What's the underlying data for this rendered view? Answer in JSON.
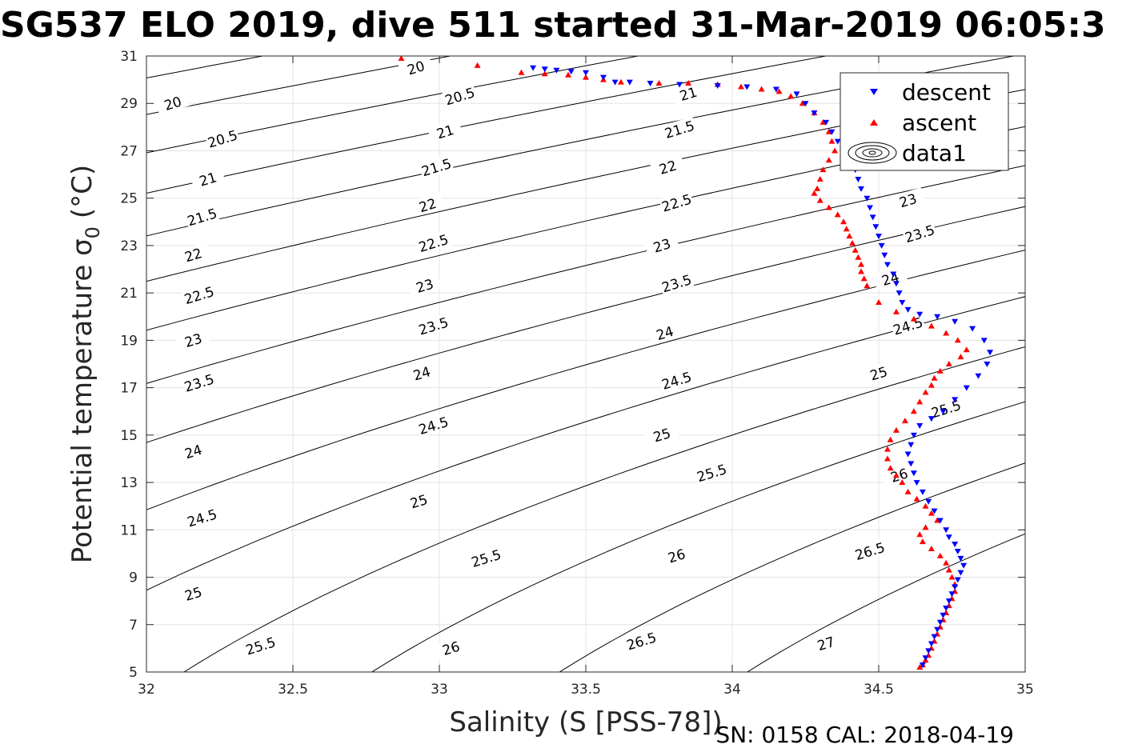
{
  "chart_data": {
    "type": "scatter",
    "title": "SG537 ELO 2019, dive 511 started 31-Mar-2019 06:05:3",
    "xlabel": "Salinity (S [PSS-78])",
    "ylabel_main": "Potential temperature σ",
    "ylabel_sub": "0",
    "ylabel_unit": "(°C)",
    "xlim": [
      32,
      35
    ],
    "ylim": [
      5,
      31
    ],
    "xticks": [
      32,
      32.5,
      33,
      33.5,
      34,
      34.5,
      35
    ],
    "xtick_labels": [
      "32",
      "32.5",
      "33",
      "33.5",
      "34",
      "34.5",
      "35"
    ],
    "yticks": [
      5,
      7,
      9,
      11,
      13,
      15,
      17,
      19,
      21,
      23,
      25,
      27,
      29,
      31
    ],
    "ytick_labels": [
      "5",
      "7",
      "9",
      "11",
      "13",
      "15",
      "17",
      "19",
      "21",
      "23",
      "25",
      "27",
      "29",
      "31"
    ],
    "grid": true,
    "legend_position": "top-right",
    "legend_entries": [
      "descent",
      "ascent",
      "data1"
    ],
    "footer_text": "SN: 0158  CAL: 2018-04-19",
    "contour_levels": [
      20,
      20.5,
      21,
      21.5,
      22,
      22.5,
      23,
      23.5,
      24,
      24.5,
      25,
      25.5,
      26,
      26.5,
      27
    ],
    "contour_labels": [
      {
        "text": "20",
        "s": 32.09,
        "t": 29.0
      },
      {
        "text": "20",
        "s": 32.92,
        "t": 30.5
      },
      {
        "text": "20.5",
        "s": 32.26,
        "t": 27.5
      },
      {
        "text": "20.5",
        "s": 33.07,
        "t": 29.3
      },
      {
        "text": "21",
        "s": 32.21,
        "t": 25.8
      },
      {
        "text": "21",
        "s": 33.02,
        "t": 27.8
      },
      {
        "text": "21",
        "s": 33.85,
        "t": 29.4
      },
      {
        "text": "21.5",
        "s": 32.19,
        "t": 24.2
      },
      {
        "text": "21.5",
        "s": 32.99,
        "t": 26.3
      },
      {
        "text": "21.5",
        "s": 33.82,
        "t": 27.9
      },
      {
        "text": "22",
        "s": 32.16,
        "t": 22.6
      },
      {
        "text": "22",
        "s": 32.96,
        "t": 24.7
      },
      {
        "text": "22",
        "s": 33.78,
        "t": 26.3
      },
      {
        "text": "22.5",
        "s": 32.18,
        "t": 20.9
      },
      {
        "text": "22.5",
        "s": 32.98,
        "t": 23.1
      },
      {
        "text": "22.5",
        "s": 33.81,
        "t": 24.8
      },
      {
        "text": "23",
        "s": 32.16,
        "t": 19.0
      },
      {
        "text": "23",
        "s": 32.95,
        "t": 21.3
      },
      {
        "text": "23",
        "s": 33.76,
        "t": 23.0
      },
      {
        "text": "23",
        "s": 34.6,
        "t": 24.9
      },
      {
        "text": "23.5",
        "s": 32.18,
        "t": 17.2
      },
      {
        "text": "23.5",
        "s": 32.98,
        "t": 19.6
      },
      {
        "text": "23.5",
        "s": 33.81,
        "t": 21.4
      },
      {
        "text": "23.5",
        "s": 34.64,
        "t": 23.5
      },
      {
        "text": "24",
        "s": 32.16,
        "t": 14.3
      },
      {
        "text": "24",
        "s": 32.94,
        "t": 17.6
      },
      {
        "text": "24",
        "s": 33.77,
        "t": 19.3
      },
      {
        "text": "24",
        "s": 34.54,
        "t": 21.6
      },
      {
        "text": "24.5",
        "s": 32.19,
        "t": 11.5
      },
      {
        "text": "24.5",
        "s": 32.98,
        "t": 15.4
      },
      {
        "text": "24.5",
        "s": 33.81,
        "t": 17.3
      },
      {
        "text": "24.5",
        "s": 34.6,
        "t": 19.6
      },
      {
        "text": "25",
        "s": 32.16,
        "t": 8.3
      },
      {
        "text": "25",
        "s": 32.93,
        "t": 12.2
      },
      {
        "text": "25",
        "s": 33.76,
        "t": 15.0
      },
      {
        "text": "25",
        "s": 34.5,
        "t": 17.6
      },
      {
        "text": "25.5",
        "s": 32.39,
        "t": 6.1
      },
      {
        "text": "25.5",
        "s": 33.16,
        "t": 9.8
      },
      {
        "text": "25.5",
        "s": 33.93,
        "t": 13.4
      },
      {
        "text": "25.5",
        "s": 34.73,
        "t": 16.1
      },
      {
        "text": "26",
        "s": 33.04,
        "t": 6.0
      },
      {
        "text": "26",
        "s": 33.81,
        "t": 9.9
      },
      {
        "text": "26",
        "s": 34.57,
        "t": 13.3
      },
      {
        "text": "26.5",
        "s": 33.69,
        "t": 6.3
      },
      {
        "text": "26.5",
        "s": 34.47,
        "t": 10.1
      },
      {
        "text": "27",
        "s": 34.32,
        "t": 6.2
      }
    ],
    "series": [
      {
        "name": "descent",
        "marker": "triangle-down",
        "color": "#0000ff",
        "x": [
          33.32,
          33.36,
          33.4,
          33.45,
          33.5,
          33.56,
          33.6,
          33.65,
          33.72,
          33.82,
          33.95,
          34.05,
          34.15,
          34.22,
          34.25,
          34.28,
          34.32,
          34.34,
          34.36,
          34.38,
          34.4,
          34.42,
          34.43,
          34.44,
          34.46,
          34.47,
          34.48,
          34.49,
          34.5,
          34.51,
          34.52,
          34.53,
          34.55,
          34.56,
          34.57,
          34.58,
          34.6,
          34.64,
          34.7,
          34.76,
          34.82,
          34.86,
          34.88,
          34.87,
          34.84,
          34.8,
          34.76,
          34.72,
          34.68,
          34.64,
          34.62,
          34.61,
          34.6,
          34.61,
          34.62,
          34.63,
          34.65,
          34.67,
          34.69,
          34.71,
          34.73,
          34.74,
          34.76,
          34.77,
          34.78,
          34.79,
          34.78,
          34.77,
          34.76,
          34.75,
          34.74,
          34.73,
          34.72,
          34.71,
          34.7,
          34.69,
          34.68,
          34.67,
          34.66,
          34.65
        ],
        "y": [
          30.5,
          30.45,
          30.4,
          30.35,
          30.3,
          30.1,
          29.9,
          29.9,
          29.85,
          29.8,
          29.75,
          29.7,
          29.6,
          29.4,
          29.0,
          28.6,
          28.2,
          27.8,
          27.4,
          27.0,
          26.6,
          26.2,
          25.8,
          25.4,
          25.0,
          24.6,
          24.2,
          23.8,
          23.4,
          23.0,
          22.6,
          22.2,
          21.8,
          21.4,
          21.0,
          20.6,
          20.3,
          20.1,
          20.0,
          19.8,
          19.5,
          19.0,
          18.5,
          18.0,
          17.5,
          17.0,
          16.5,
          16.0,
          15.7,
          15.4,
          15.0,
          14.6,
          14.2,
          13.8,
          13.4,
          13.0,
          12.6,
          12.2,
          11.8,
          11.4,
          11.0,
          10.7,
          10.4,
          10.1,
          9.8,
          9.5,
          9.2,
          8.9,
          8.6,
          8.3,
          8.0,
          7.7,
          7.4,
          7.1,
          6.8,
          6.5,
          6.2,
          5.9,
          5.6,
          5.3
        ]
      },
      {
        "name": "ascent",
        "marker": "triangle-up",
        "color": "#ff0000",
        "x": [
          32.87,
          33.13,
          33.28,
          33.36,
          33.44,
          33.5,
          33.56,
          33.62,
          33.75,
          33.85,
          33.95,
          34.03,
          34.1,
          34.16,
          34.2,
          34.24,
          34.28,
          34.31,
          34.33,
          34.34,
          34.35,
          34.33,
          34.31,
          34.3,
          34.29,
          34.28,
          34.3,
          34.33,
          34.36,
          34.38,
          34.39,
          34.4,
          34.41,
          34.42,
          34.43,
          34.44,
          34.44,
          34.45,
          34.46,
          34.5,
          34.56,
          34.62,
          34.68,
          34.73,
          34.77,
          34.8,
          34.78,
          34.74,
          34.71,
          34.69,
          34.68,
          34.66,
          34.64,
          34.62,
          34.59,
          34.56,
          34.54,
          34.53,
          34.53,
          34.54,
          34.56,
          34.58,
          34.6,
          34.63,
          34.66,
          34.68,
          34.7,
          34.66,
          34.64,
          34.65,
          34.68,
          34.71,
          34.73,
          34.74,
          34.75,
          34.76,
          34.76,
          34.75,
          34.74,
          34.73,
          34.72,
          34.71,
          34.7,
          34.69,
          34.68,
          34.67,
          34.66,
          34.65,
          34.64
        ],
        "y": [
          30.9,
          30.6,
          30.3,
          30.25,
          30.2,
          30.1,
          30.0,
          29.9,
          29.85,
          29.85,
          29.8,
          29.7,
          29.6,
          29.5,
          29.3,
          29.0,
          28.6,
          28.2,
          27.8,
          27.4,
          27.0,
          26.6,
          26.2,
          25.8,
          25.4,
          25.2,
          24.9,
          24.6,
          24.3,
          24.0,
          23.7,
          23.4,
          23.1,
          22.8,
          22.5,
          22.2,
          21.9,
          21.6,
          21.3,
          20.6,
          20.2,
          19.9,
          19.6,
          19.3,
          19.0,
          18.6,
          18.3,
          18.0,
          17.7,
          17.4,
          17.1,
          16.8,
          16.4,
          16.0,
          15.6,
          15.2,
          14.8,
          14.4,
          14.0,
          13.6,
          13.3,
          13.0,
          12.6,
          12.3,
          12.0,
          11.7,
          11.4,
          11.1,
          10.8,
          10.5,
          10.2,
          9.9,
          9.6,
          9.3,
          9.0,
          8.7,
          8.4,
          8.1,
          7.8,
          7.5,
          7.2,
          6.9,
          6.6,
          6.3,
          6.0,
          5.7,
          5.5,
          5.3,
          5.2
        ]
      }
    ]
  }
}
